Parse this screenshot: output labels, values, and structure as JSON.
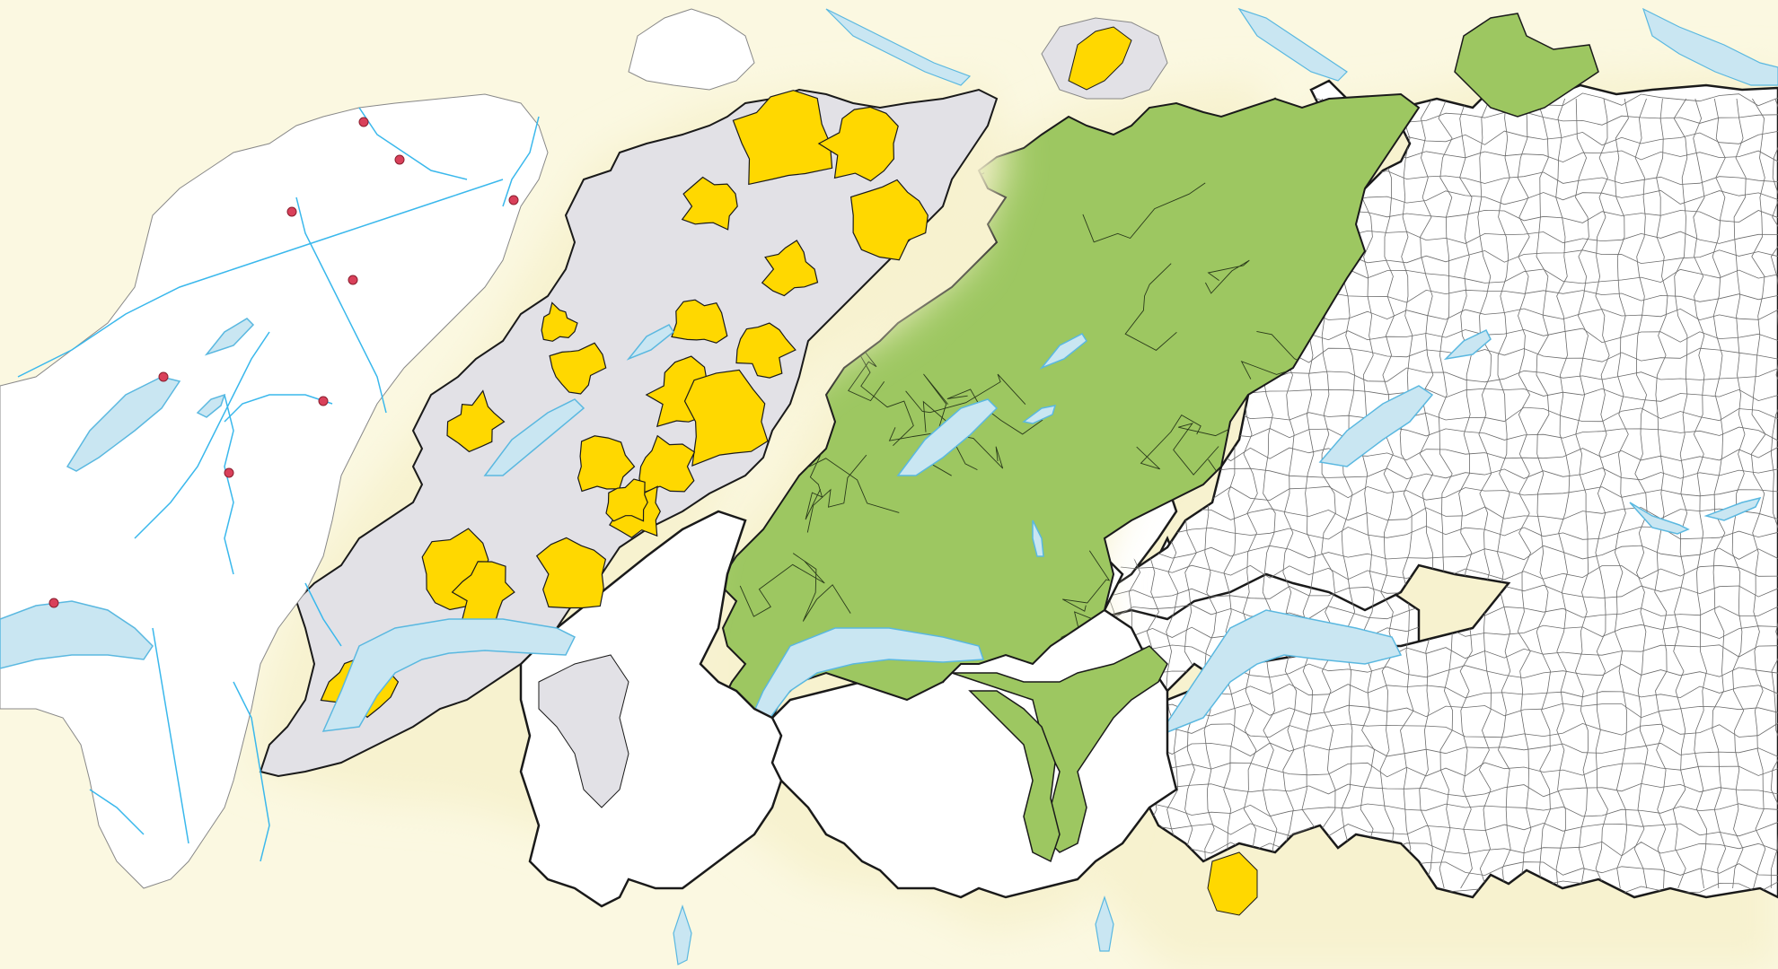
{
  "colors": {
    "background": "#fbf8e1",
    "halo": "#f7f2cf",
    "land_white": "#ffffff",
    "land_grey": "#e2e1e6",
    "agglomeration_yellow": "#ffd800",
    "district_green": "#9dc761",
    "lake_blue": "#c9e6f2",
    "river_blue": "#3ab8ec",
    "boundary_dark": "#1a1a1a",
    "boundary_thin": "#6b6b6b",
    "city_dot": "#d9405a"
  },
  "layers": [
    {
      "id": "rivers-and-cities",
      "fill": "white"
    },
    {
      "id": "agglomerations",
      "fill": "grey-yellow"
    },
    {
      "id": "districts",
      "fill": "green"
    },
    {
      "id": "municipalities",
      "fill": "white"
    }
  ]
}
